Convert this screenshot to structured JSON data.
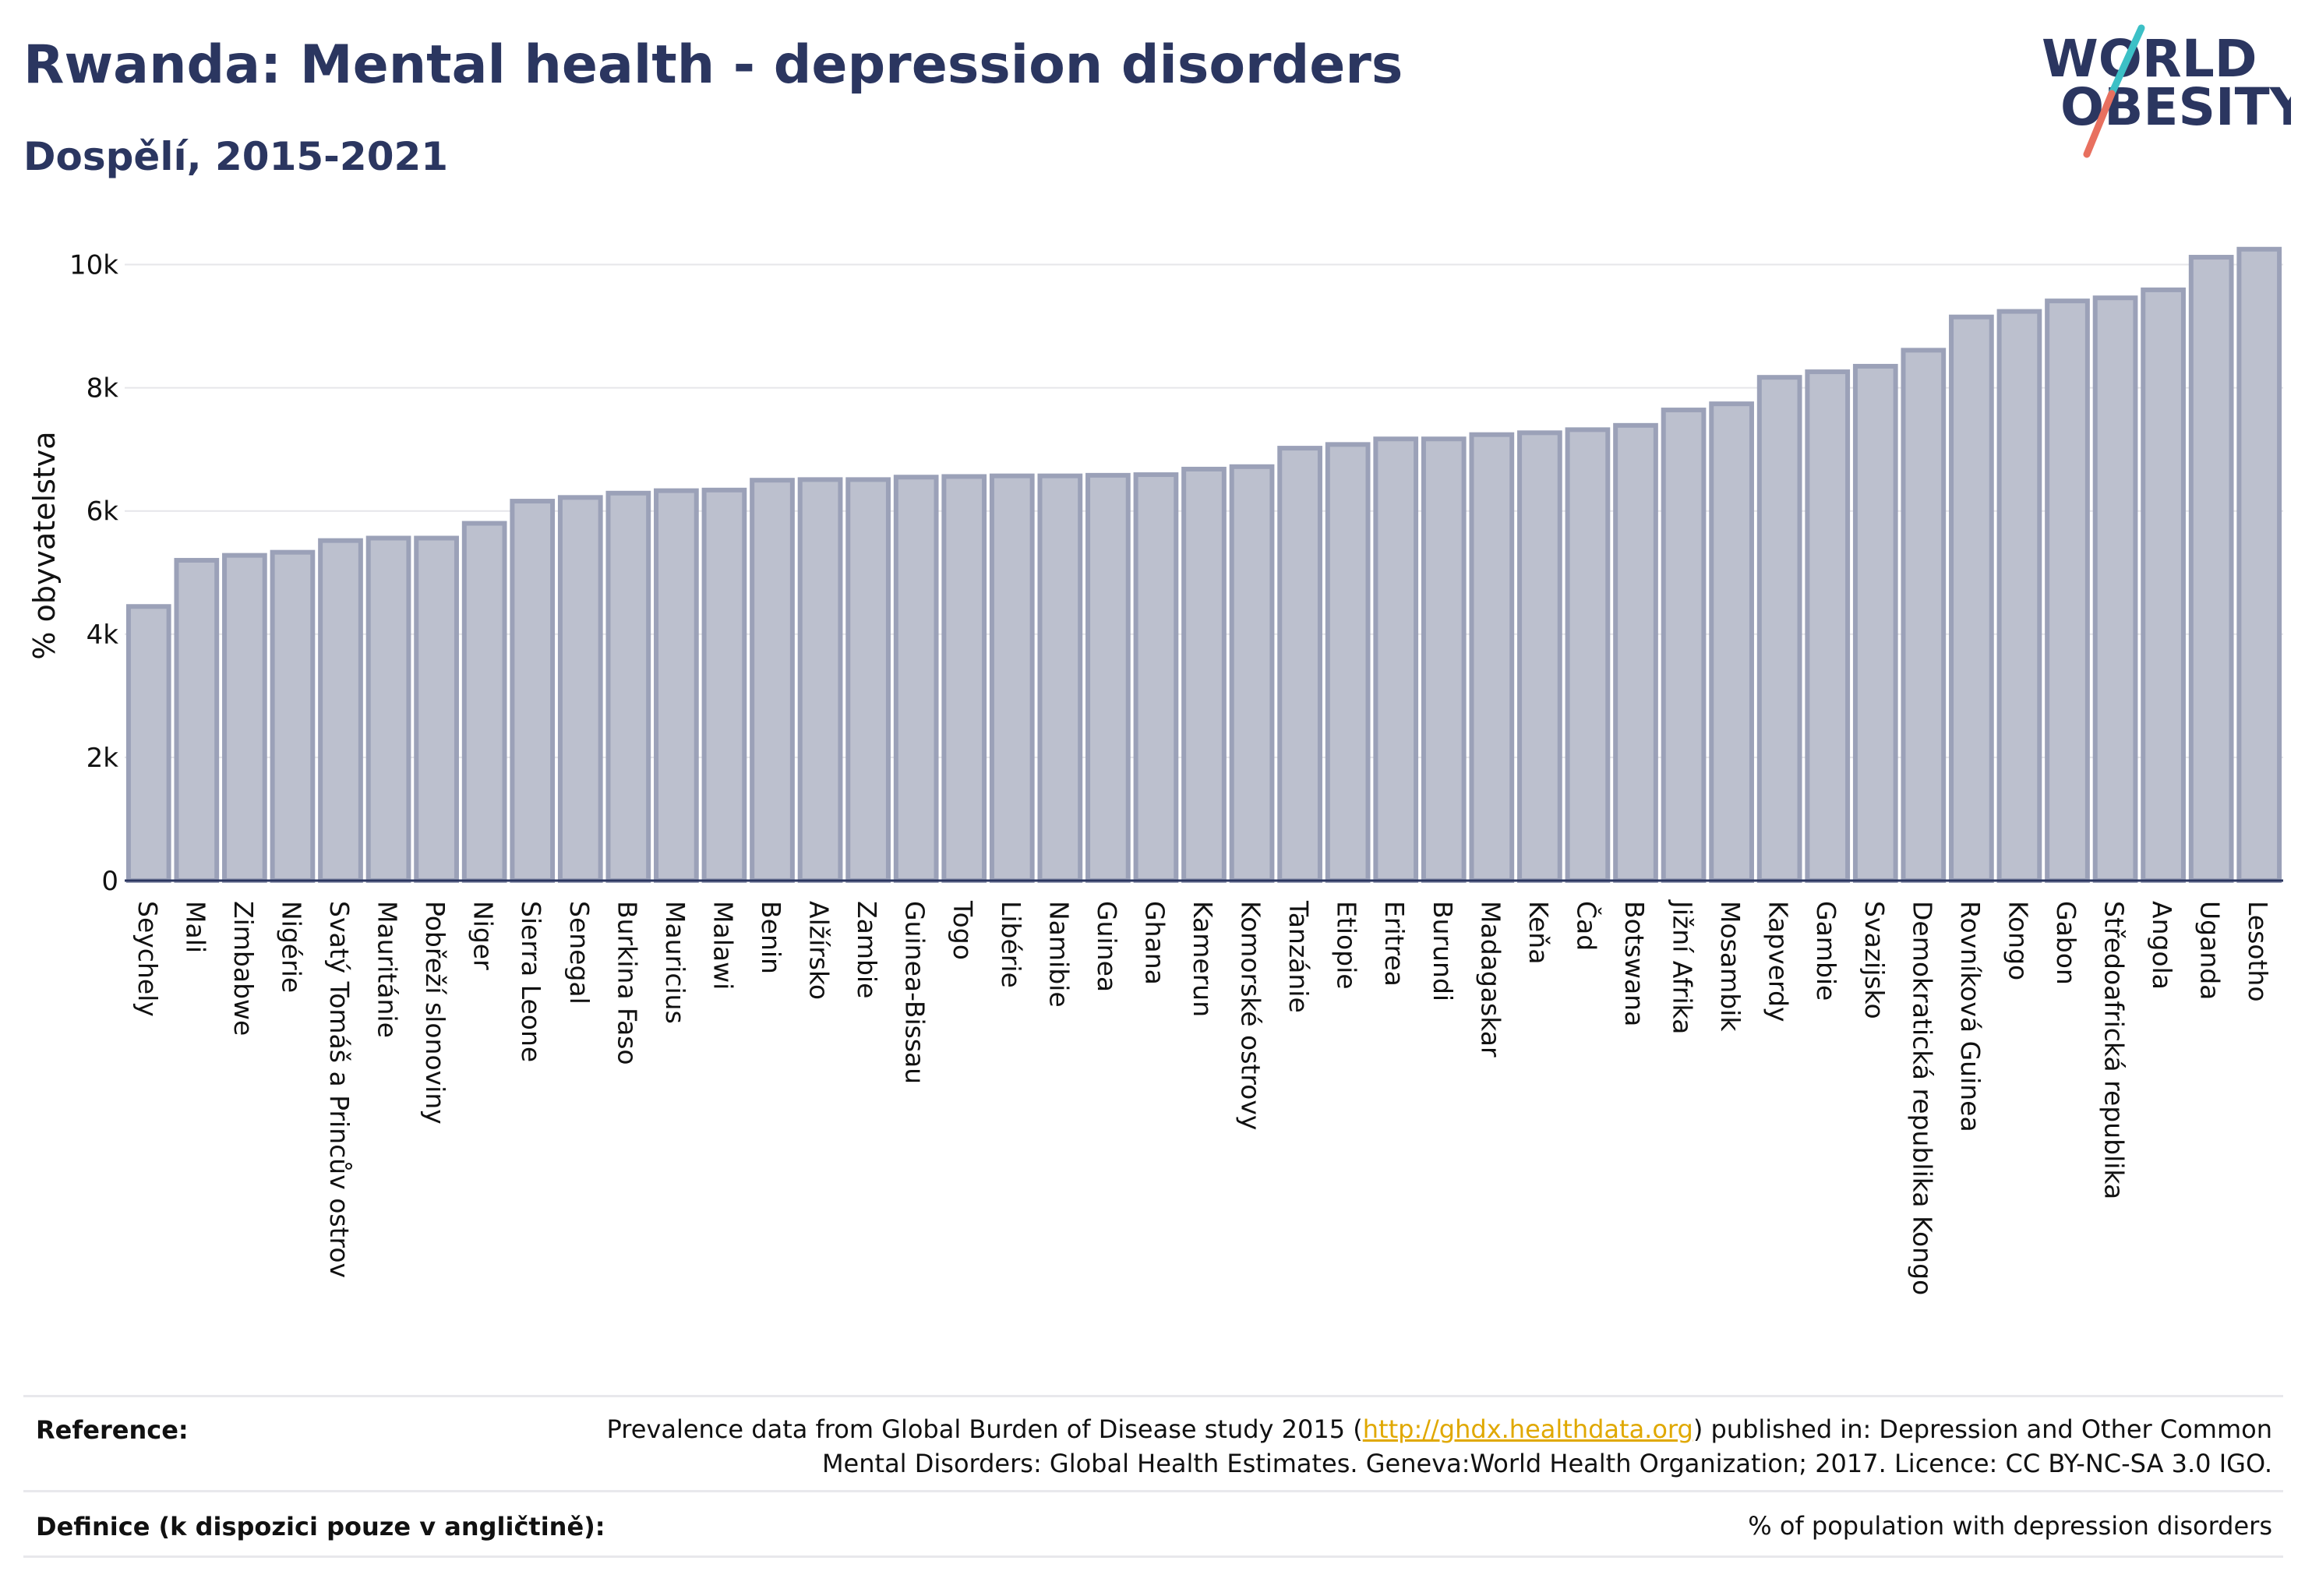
{
  "header": {
    "title": "Rwanda: Mental health - depression disorders",
    "subtitle": "Dospělí, 2015-2021"
  },
  "logo": {
    "line1": "WORLD",
    "line2": "OBESITY"
  },
  "colors": {
    "bar_fill": "#bcc0ce",
    "bar_stroke": "#9ba1b8",
    "title": "#2b3660",
    "logo_slash_teal": "#3cc0c6",
    "logo_slash_coral": "#e8705f",
    "link": "#e0a800"
  },
  "chart_data": {
    "type": "bar",
    "title": "",
    "xlabel": "",
    "ylabel": "% obyvatelstva",
    "ylim": [
      0,
      10500
    ],
    "yticks": [
      0,
      2000,
      4000,
      6000,
      8000,
      10000
    ],
    "ytick_labels": [
      "0",
      "2k",
      "4k",
      "6k",
      "8k",
      "10k"
    ],
    "grid": true,
    "categories": [
      "Seychely",
      "Mali",
      "Zimbabwe",
      "Nigérie",
      "Svatý Tomáš a Princův ostrov",
      "Mauritánie",
      "Pobřeží slonoviny",
      "Niger",
      "Sierra Leone",
      "Senegal",
      "Burkina Faso",
      "Mauricius",
      "Malawi",
      "Benin",
      "Alžírsko",
      "Zambie",
      "Guinea-Bissau",
      "Togo",
      "Libérie",
      "Namibie",
      "Guinea",
      "Ghana",
      "Kamerun",
      "Komorské ostrovy",
      "Tanzánie",
      "Etiopie",
      "Eritrea",
      "Burundi",
      "Madagaskar",
      "Keňa",
      "Čad",
      "Botswana",
      "Jižní Afrika",
      "Mosambik",
      "Kapverdy",
      "Gambie",
      "Svazijsko",
      "Demokratická republika Kongo",
      "Rovníková Guinea",
      "Kongo",
      "Gabon",
      "Středoafrická republika",
      "Angola",
      "Uganda",
      "Lesotho"
    ],
    "values": [
      4450,
      5200,
      5280,
      5330,
      5520,
      5560,
      5560,
      5800,
      6160,
      6220,
      6290,
      6330,
      6340,
      6500,
      6510,
      6510,
      6550,
      6560,
      6570,
      6570,
      6580,
      6590,
      6680,
      6720,
      7020,
      7080,
      7170,
      7170,
      7240,
      7270,
      7320,
      7390,
      7640,
      7740,
      8170,
      8260,
      8350,
      8610,
      9150,
      9240,
      9410,
      9460,
      9590,
      10120,
      10250
    ]
  },
  "footer": {
    "reference_label": "Reference:",
    "reference_pre": "Prevalence data from Global Burden of Disease study 2015 (",
    "reference_link": "http://ghdx.healthdata.org",
    "reference_post": ") published in: Depression and Other Common",
    "reference_line2": "Mental Disorders: Global Health Estimates. Geneva:World Health Organization; 2017. Licence: CC BY-NC-SA 3.0 IGO.",
    "definition_label": "Definice (k dispozici pouze v angličtině):",
    "definition_text": "% of population with depression disorders"
  }
}
